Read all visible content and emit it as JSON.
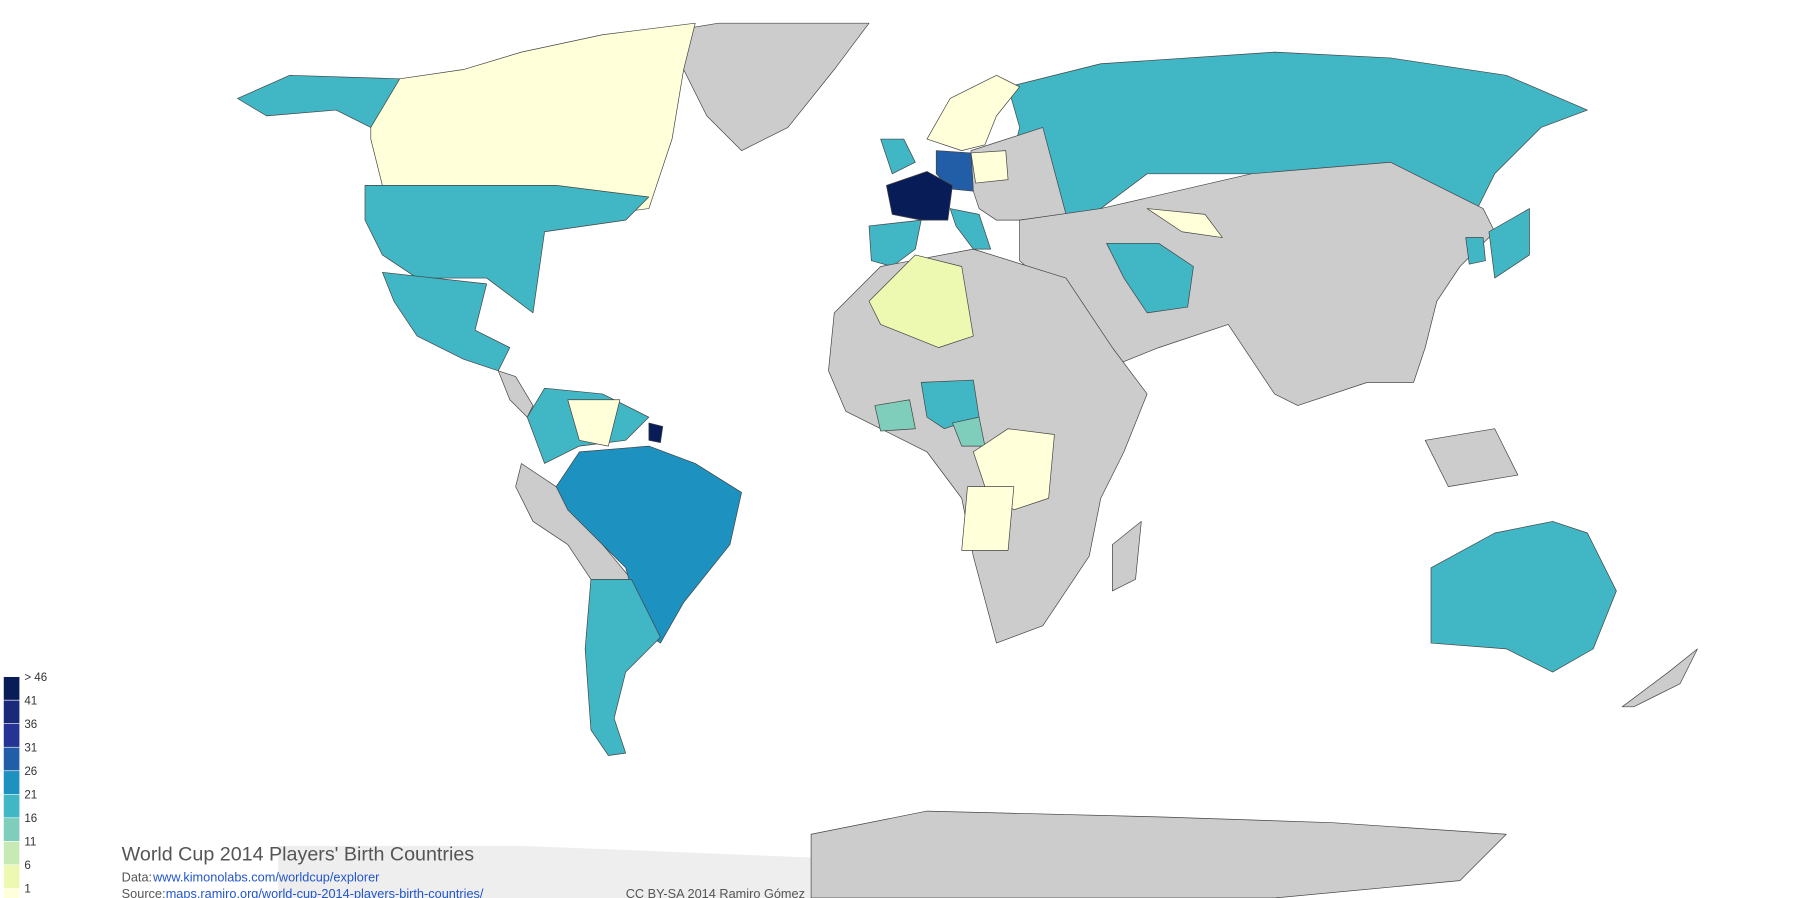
{
  "title": "World Cup 2014 Players' Birth Countries",
  "data_label": "Data:",
  "data_url": "www.kimonolabs.com/worldcup/explorer",
  "source_label": "Source:",
  "source_url": "maps.ramiro.org/world-cup-2014-players-birth-countries/",
  "credit": "CC BY-SA 2014 Ramiro Gómez",
  "legend": [
    {
      "label": "> 46",
      "color": "#081d58"
    },
    {
      "label": "41",
      "color": "#1a2a7a"
    },
    {
      "label": "36",
      "color": "#253494"
    },
    {
      "label": "31",
      "color": "#225ea8"
    },
    {
      "label": "26",
      "color": "#1d91c0"
    },
    {
      "label": "21",
      "color": "#41b6c4"
    },
    {
      "label": "16",
      "color": "#7fcdbb"
    },
    {
      "label": "11",
      "color": "#c7e9b4"
    },
    {
      "label": "6",
      "color": "#edf8b1"
    },
    {
      "label": "1",
      "color": "#ffffd9"
    }
  ]
}
